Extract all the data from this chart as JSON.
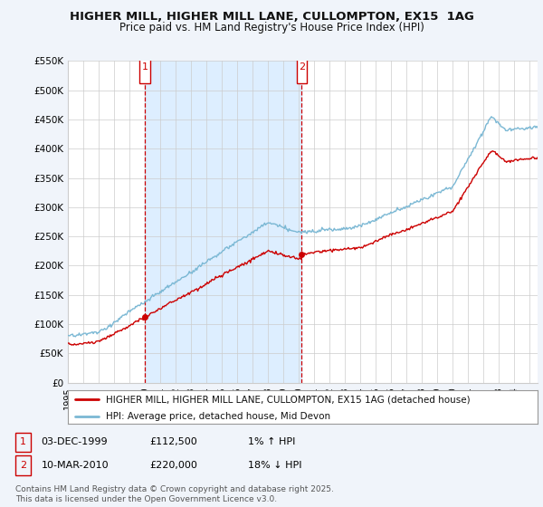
{
  "title": "HIGHER MILL, HIGHER MILL LANE, CULLOMPTON, EX15  1AG",
  "subtitle": "Price paid vs. HM Land Registry's House Price Index (HPI)",
  "legend_line1": "HIGHER MILL, HIGHER MILL LANE, CULLOMPTON, EX15 1AG (detached house)",
  "legend_line2": "HPI: Average price, detached house, Mid Devon",
  "sale1_date": "03-DEC-1999",
  "sale1_price": "£112,500",
  "sale1_hpi": "1% ↑ HPI",
  "sale2_date": "10-MAR-2010",
  "sale2_price": "£220,000",
  "sale2_hpi": "18% ↓ HPI",
  "footnote": "Contains HM Land Registry data © Crown copyright and database right 2025.\nThis data is licensed under the Open Government Licence v3.0.",
  "sale1_year": 2000.0,
  "sale1_value": 112500,
  "sale2_year": 2010.19,
  "sale2_value": 220000,
  "hpi_color": "#7bb8d4",
  "price_color": "#cc0000",
  "vline_color": "#cc0000",
  "shade_color": "#ddeeff",
  "background_color": "#f0f4fa",
  "plot_bg_color": "#ffffff",
  "ylim": [
    0,
    550000
  ],
  "xlim_start": 1995,
  "xlim_end": 2025.5,
  "yticks": [
    0,
    50000,
    100000,
    150000,
    200000,
    250000,
    300000,
    350000,
    400000,
    450000,
    500000,
    550000
  ],
  "ylabels": [
    "£0",
    "£50K",
    "£100K",
    "£150K",
    "£200K",
    "£250K",
    "£300K",
    "£350K",
    "£400K",
    "£450K",
    "£500K",
    "£550K"
  ]
}
